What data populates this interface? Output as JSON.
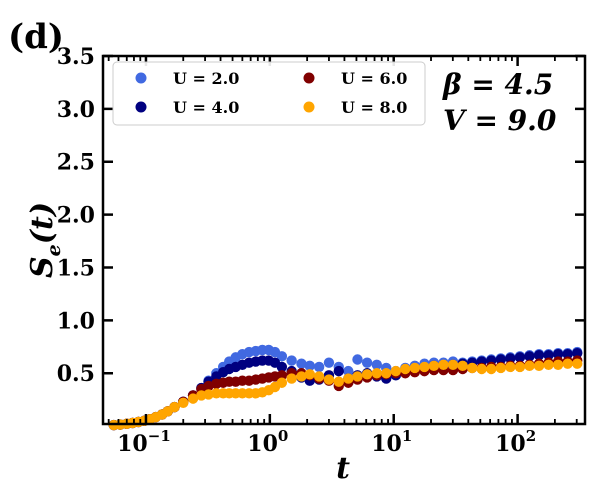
{
  "panel_label": "(d)",
  "chart_data": {
    "type": "scatter",
    "title": "",
    "xlabel": "t",
    "ylabel_main": "S",
    "ylabel_sub": "e",
    "ylabel_arg": "(t)",
    "xscale": "log",
    "xlim": [
      0.045,
      350
    ],
    "ylim": [
      0.02,
      3.5
    ],
    "grid": false,
    "legend_position": "top-left",
    "x_ticks": [
      {
        "value": 0.1,
        "base": "10",
        "exp": "−1"
      },
      {
        "value": 1,
        "base": "10",
        "exp": "0"
      },
      {
        "value": 10,
        "base": "10",
        "exp": "1"
      },
      {
        "value": 100,
        "base": "10",
        "exp": "2"
      }
    ],
    "y_ticks": [
      {
        "value": 0.5,
        "label": "0.5"
      },
      {
        "value": 1.0,
        "label": "1.0"
      },
      {
        "value": 1.5,
        "label": "1.5"
      },
      {
        "value": 2.0,
        "label": "2.0"
      },
      {
        "value": 2.5,
        "label": "2.5"
      },
      {
        "value": 3.0,
        "label": "3.0"
      },
      {
        "value": 3.5,
        "label": "3.5"
      }
    ],
    "annotations": [
      "β = 4.5",
      "V = 9.0"
    ],
    "x": [
      0.055,
      0.062,
      0.07,
      0.078,
      0.087,
      0.097,
      0.108,
      0.12,
      0.135,
      0.15,
      0.17,
      0.2,
      0.24,
      0.28,
      0.32,
      0.37,
      0.42,
      0.47,
      0.53,
      0.6,
      0.68,
      0.77,
      0.87,
      0.98,
      1.1,
      1.25,
      1.5,
      1.8,
      2.1,
      2.5,
      3.0,
      3.6,
      4.3,
      5.1,
      6.1,
      7.3,
      8.7,
      10.4,
      12.4,
      14.8,
      17.7,
      21.1,
      25.2,
      30.1,
      36.0,
      43.0,
      51.3,
      61.3,
      73.2,
      87.4,
      104.4,
      124.7,
      148.9,
      177.8,
      212.3,
      253.6,
      302.9
    ],
    "series": [
      {
        "name": "U = 2.0",
        "color": "#4169e1",
        "values": [
          0.01,
          0.015,
          0.022,
          0.03,
          0.04,
          0.05,
          0.065,
          0.085,
          0.11,
          0.14,
          0.18,
          0.23,
          0.29,
          0.36,
          0.43,
          0.5,
          0.56,
          0.61,
          0.65,
          0.68,
          0.7,
          0.71,
          0.72,
          0.72,
          0.7,
          0.66,
          0.62,
          0.59,
          0.57,
          0.56,
          0.6,
          0.56,
          0.52,
          0.63,
          0.6,
          0.58,
          0.55,
          0.52,
          0.55,
          0.57,
          0.59,
          0.6,
          0.6,
          0.61,
          0.6,
          0.61,
          0.62,
          0.63,
          0.64,
          0.65,
          0.66,
          0.67,
          0.68,
          0.68,
          0.69,
          0.69,
          0.7
        ]
      },
      {
        "name": "U = 4.0",
        "color": "#000080",
        "values": [
          0.01,
          0.015,
          0.022,
          0.03,
          0.04,
          0.05,
          0.065,
          0.085,
          0.11,
          0.14,
          0.18,
          0.23,
          0.29,
          0.36,
          0.42,
          0.47,
          0.51,
          0.54,
          0.56,
          0.58,
          0.6,
          0.61,
          0.62,
          0.62,
          0.6,
          0.56,
          0.52,
          0.46,
          0.43,
          0.44,
          0.48,
          0.52,
          0.45,
          0.48,
          0.5,
          0.47,
          0.45,
          0.48,
          0.51,
          0.53,
          0.55,
          0.57,
          0.57,
          0.58,
          0.59,
          0.6,
          0.61,
          0.62,
          0.63,
          0.64,
          0.65,
          0.66,
          0.67,
          0.67,
          0.68,
          0.68,
          0.69
        ]
      },
      {
        "name": "U = 6.0",
        "color": "#800000",
        "values": [
          0.01,
          0.015,
          0.022,
          0.03,
          0.04,
          0.05,
          0.065,
          0.085,
          0.11,
          0.14,
          0.18,
          0.23,
          0.29,
          0.35,
          0.38,
          0.4,
          0.41,
          0.42,
          0.42,
          0.43,
          0.43,
          0.44,
          0.45,
          0.46,
          0.47,
          0.48,
          0.5,
          0.5,
          0.48,
          0.45,
          0.43,
          0.38,
          0.41,
          0.44,
          0.46,
          0.48,
          0.49,
          0.5,
          0.5,
          0.51,
          0.52,
          0.53,
          0.53,
          0.53,
          0.54,
          0.55,
          0.55,
          0.56,
          0.56,
          0.57,
          0.57,
          0.58,
          0.59,
          0.6,
          0.61,
          0.61,
          0.62
        ]
      },
      {
        "name": "U = 8.0",
        "color": "#ffa500",
        "values": [
          0.01,
          0.015,
          0.022,
          0.03,
          0.04,
          0.05,
          0.065,
          0.085,
          0.11,
          0.14,
          0.18,
          0.22,
          0.26,
          0.29,
          0.3,
          0.31,
          0.31,
          0.31,
          0.31,
          0.31,
          0.31,
          0.31,
          0.32,
          0.34,
          0.37,
          0.41,
          0.45,
          0.47,
          0.49,
          0.47,
          0.44,
          0.42,
          0.45,
          0.47,
          0.49,
          0.5,
          0.5,
          0.52,
          0.54,
          0.55,
          0.56,
          0.57,
          0.58,
          0.58,
          0.57,
          0.55,
          0.54,
          0.54,
          0.55,
          0.56,
          0.56,
          0.57,
          0.57,
          0.58,
          0.58,
          0.59,
          0.59
        ]
      }
    ]
  }
}
